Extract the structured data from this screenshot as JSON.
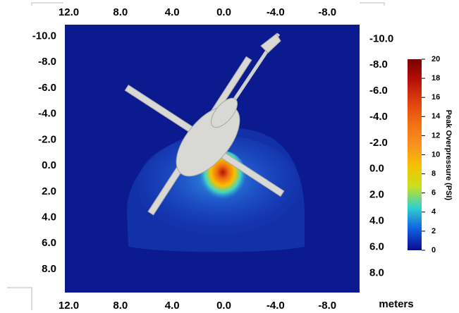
{
  "chart_data": {
    "type": "field",
    "xlim": [
      12.3,
      -10.5
    ],
    "xticks": [
      {
        "value": 12,
        "label": "12.0"
      },
      {
        "value": 8,
        "label": "8.0"
      },
      {
        "value": 4,
        "label": "4.0"
      },
      {
        "value": 0,
        "label": "0.0"
      },
      {
        "value": -4,
        "label": "-4.0"
      },
      {
        "value": -8,
        "label": "-8.0"
      }
    ],
    "ylim": [
      -10.9,
      9.8
    ],
    "yticks": [
      {
        "value": -10,
        "label": "-10.0"
      },
      {
        "value": -8,
        "label": "-8.0"
      },
      {
        "value": -6,
        "label": "-6.0"
      },
      {
        "value": -4,
        "label": "-4.0"
      },
      {
        "value": -2,
        "label": "-2.0"
      },
      {
        "value": 0,
        "label": "0.0"
      },
      {
        "value": 2,
        "label": "2.0"
      },
      {
        "value": 4,
        "label": "4.0"
      },
      {
        "value": 6,
        "label": "6.0"
      },
      {
        "value": 8,
        "label": "8.0"
      }
    ],
    "y2lim": [
      -11.1,
      9.5
    ],
    "y2ticks": [
      {
        "value": -10,
        "label": "-10.0"
      },
      {
        "value": -8,
        "label": "-8.0"
      },
      {
        "value": -6,
        "label": "-6.0"
      },
      {
        "value": -4,
        "label": "-4.0"
      },
      {
        "value": -2,
        "label": "-2.0"
      },
      {
        "value": 0,
        "label": "0.0"
      },
      {
        "value": 2,
        "label": "2.0"
      },
      {
        "value": 4,
        "label": "4.0"
      },
      {
        "value": 6,
        "label": "6.0"
      },
      {
        "value": 8,
        "label": "8.0"
      }
    ],
    "axis_unit": "meters",
    "colorbar": {
      "label": "Peak Overpressure (PSI)",
      "lim": [
        0,
        20
      ],
      "ticks": [
        0,
        2,
        4,
        6,
        8,
        10,
        12,
        14,
        16,
        18,
        20
      ],
      "colormap": [
        "#0a0a8c",
        "#1060e0",
        "#30d0d0",
        "#c8e020",
        "#f8c000",
        "#f89020",
        "#f07010",
        "#e04010",
        "#b81008",
        "#7a0000"
      ]
    }
  }
}
